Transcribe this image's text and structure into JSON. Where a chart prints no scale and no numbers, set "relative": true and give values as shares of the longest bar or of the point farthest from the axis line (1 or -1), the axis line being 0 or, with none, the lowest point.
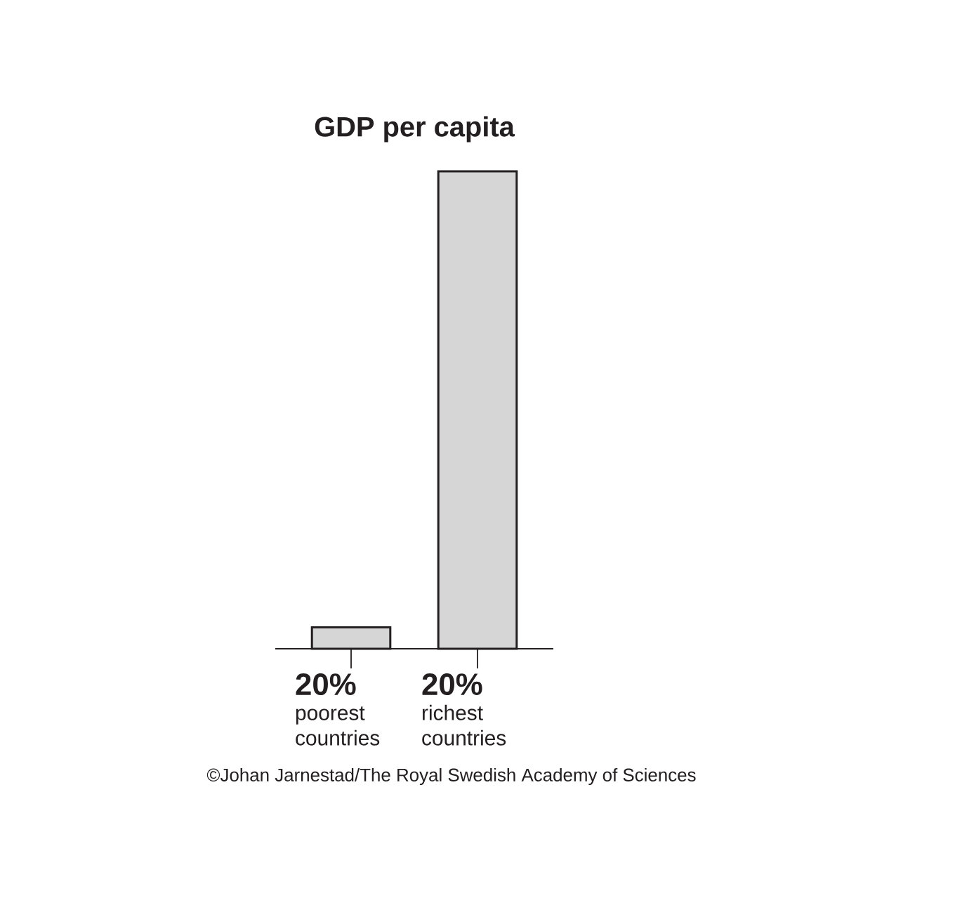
{
  "chart_data": {
    "type": "bar",
    "title": "GDP per capita",
    "categories": [
      "**20%** poorest countries",
      "**20%** richest countries"
    ],
    "values": [
      0.045,
      1
    ],
    "relative": true,
    "color": "#d6d6d6",
    "annotations": [
      "©Johan Jarnestad/The Royal Swedish Academy of Sciences"
    ]
  }
}
